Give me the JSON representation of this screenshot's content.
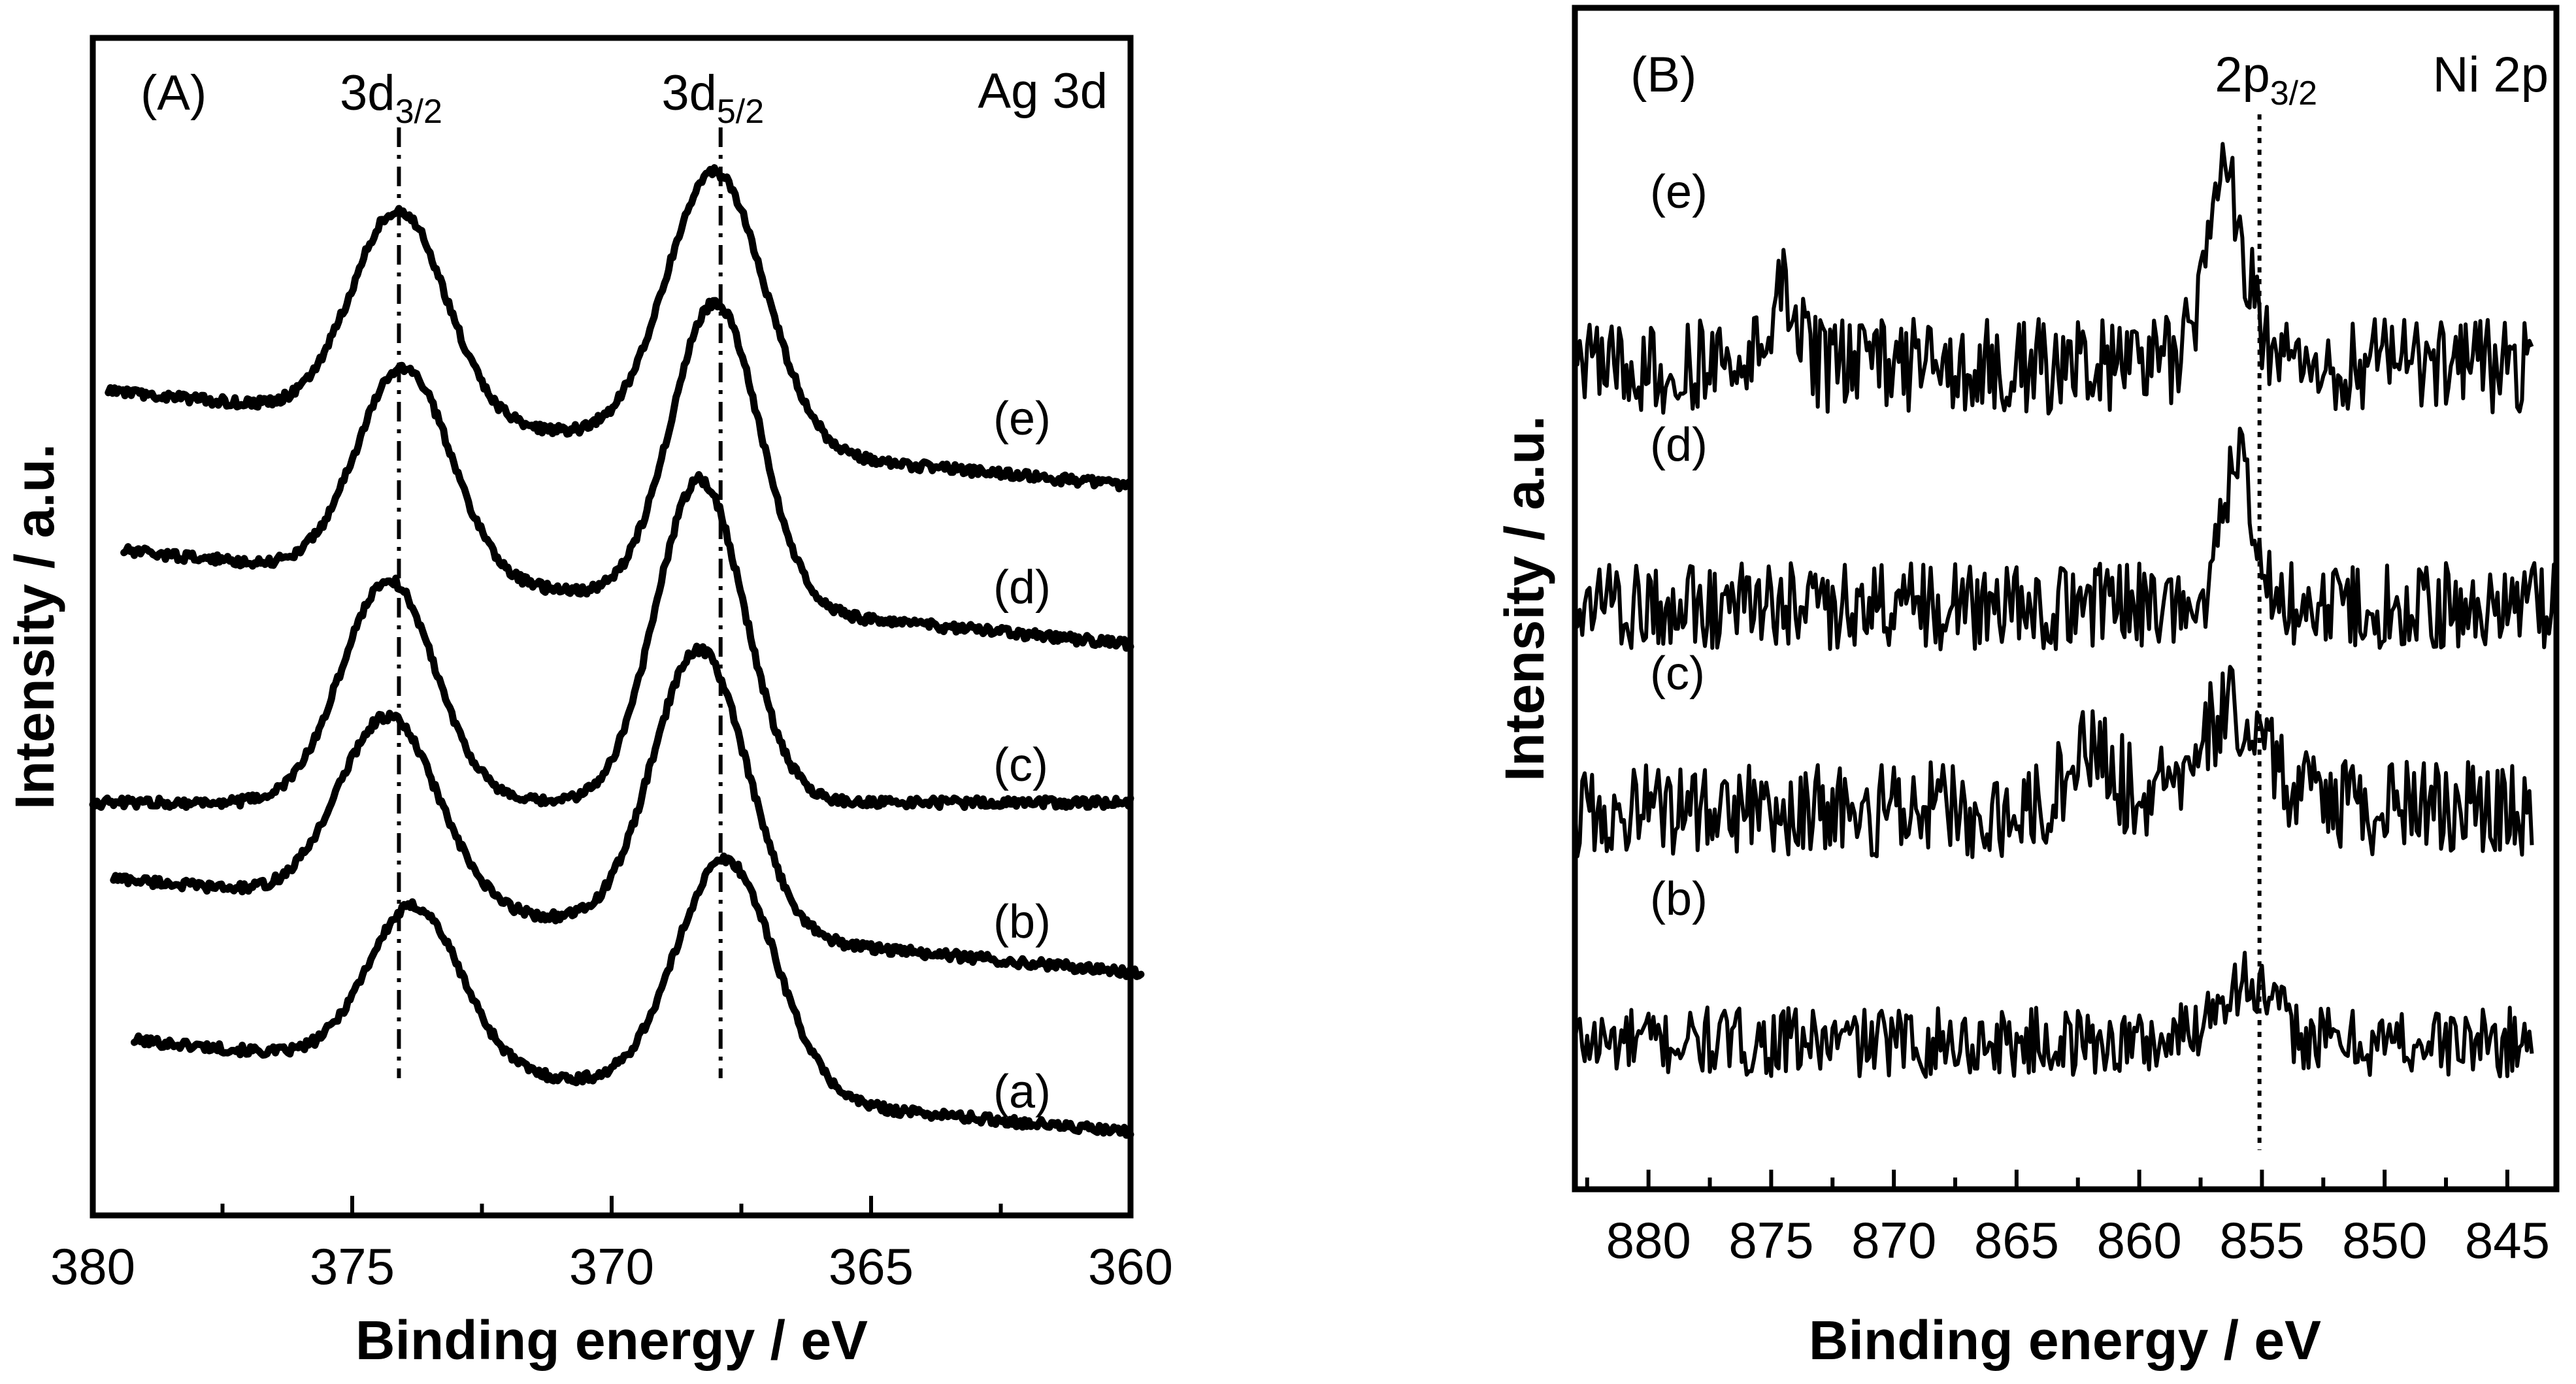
{
  "chart_data": [
    {
      "panel": "(A)",
      "type": "line",
      "title": "Ag 3d",
      "xlabel": "Binding energy / eV",
      "ylabel": "Intensity / a.u.",
      "xlim": [
        380,
        360
      ],
      "x_reversed": true,
      "xticks": [
        380,
        375,
        370,
        365,
        360
      ],
      "grid": false,
      "peak_annotations": [
        {
          "main": "3d",
          "sub": "3/2",
          "position_eV": 374.1
        },
        {
          "main": "3d",
          "sub": "5/2",
          "position_eV": 367.9
        }
      ],
      "series": [
        {
          "name": "(a)",
          "x_range": [
            379.2,
            360.0
          ],
          "baseline": 0.0,
          "background_slope": 0.003,
          "peaks": [
            {
              "center": 373.8,
              "height": 1.0,
              "width": 0.9
            },
            {
              "center": 367.8,
              "height": 1.47,
              "width": 0.95
            }
          ]
        },
        {
          "name": "(b)",
          "x_range": [
            379.6,
            359.8
          ],
          "baseline": 1.0,
          "background_slope": 0.003,
          "peaks": [
            {
              "center": 374.3,
              "height": 1.17,
              "width": 0.95
            },
            {
              "center": 368.3,
              "height": 1.77,
              "width": 0.9
            }
          ]
        },
        {
          "name": "(c)",
          "x_range": [
            380.0,
            360.0
          ],
          "baseline": 2.06,
          "background_slope": 0.0,
          "peaks": [
            {
              "center": 374.3,
              "height": 1.39,
              "width": 0.9
            },
            {
              "center": 368.3,
              "height": 2.02,
              "width": 0.85
            }
          ]
        },
        {
          "name": "(d)",
          "x_range": [
            379.4,
            360.0
          ],
          "baseline": 3.05,
          "background_slope": 0.003,
          "peaks": [
            {
              "center": 374.0,
              "height": 1.31,
              "width": 0.9
            },
            {
              "center": 368.0,
              "height": 1.89,
              "width": 0.85
            }
          ]
        },
        {
          "name": "(e)",
          "x_range": [
            379.7,
            360.0
          ],
          "baseline": 4.04,
          "background_slope": 0.003,
          "peaks": [
            {
              "center": 374.1,
              "height": 1.3,
              "width": 0.9
            },
            {
              "center": 368.0,
              "height": 1.72,
              "width": 0.95
            }
          ]
        }
      ]
    },
    {
      "panel": "(B)",
      "type": "line",
      "title": "Ni 2p",
      "xlabel": "Binding energy / eV",
      "ylabel": "Intensity / a.u.",
      "xlim": [
        883,
        843
      ],
      "x_reversed": true,
      "xticks": [
        880,
        875,
        870,
        865,
        860,
        855,
        850,
        845
      ],
      "grid": false,
      "peak_annotations": [
        {
          "main": "2p",
          "sub": "3/2",
          "position_eV": 855.1
        }
      ],
      "series": [
        {
          "name": "(b)",
          "x_range": [
            883.0,
            844.0
          ],
          "baseline": 0.0,
          "noise_amplitude": 0.4,
          "peaks": [
            {
              "center": 855.8,
              "height": 0.35,
              "width": 1.2
            }
          ]
        },
        {
          "name": "(c)",
          "x_range": [
            883.0,
            844.0
          ],
          "baseline": 1.34,
          "noise_amplitude": 0.55,
          "peaks": [
            {
              "center": 856.3,
              "height": 0.55,
              "width": 1.5
            },
            {
              "center": 862.0,
              "height": 0.35,
              "width": 1.0
            }
          ]
        },
        {
          "name": "(d)",
          "x_range": [
            883.0,
            843.0
          ],
          "baseline": 2.51,
          "noise_amplitude": 0.5,
          "peaks": [
            {
              "center": 856.0,
              "height": 0.85,
              "width": 0.6
            }
          ]
        },
        {
          "name": "(e)",
          "x_range": [
            883.0,
            844.0
          ],
          "baseline": 3.89,
          "noise_amplitude": 0.55,
          "peaks": [
            {
              "center": 856.5,
              "height": 1.05,
              "width": 0.8
            },
            {
              "center": 874.5,
              "height": 0.45,
              "width": 0.6
            }
          ]
        }
      ]
    }
  ]
}
